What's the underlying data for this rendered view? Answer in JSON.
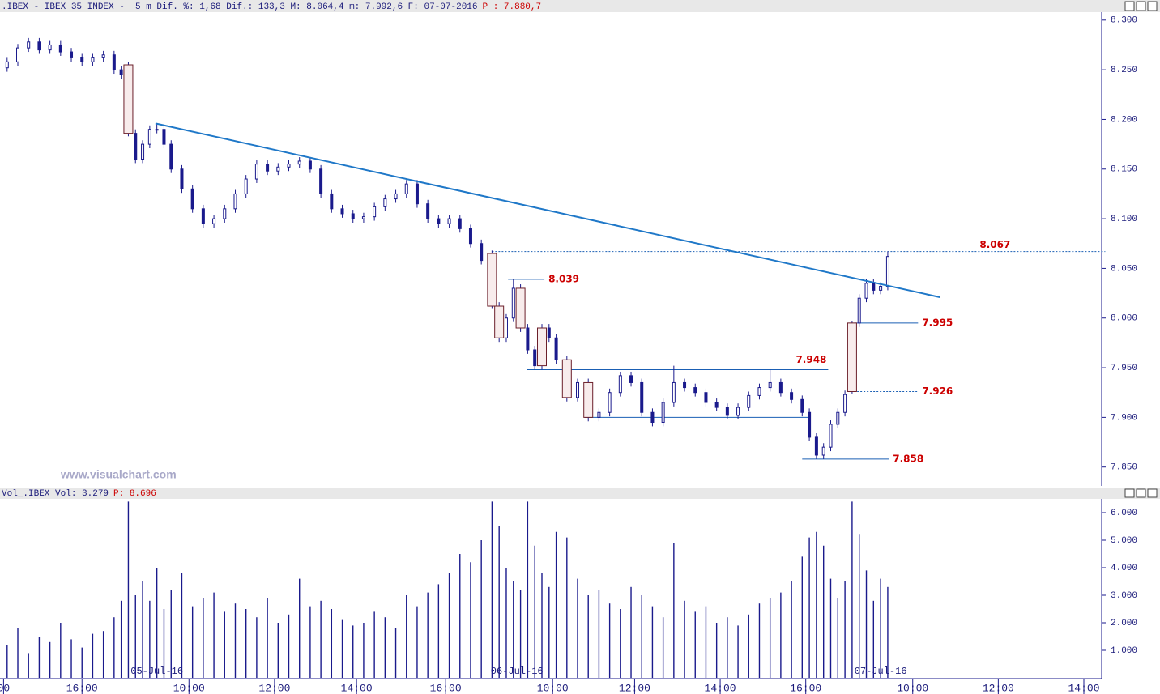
{
  "chart_data": {
    "type": "candlestick",
    "header_text": ".IBEX - IBEX 35 INDEX -  5 m Dif. %: 1,68 Dif.: 133,3 M: 8.064,4 m: 7.992,6 F: 07-07-2016",
    "header_price": "P : 7.880,7",
    "watermark": "www.visualchart.com",
    "volume_header_text": "Vol_.IBEX Vol: 3.279",
    "volume_header_price": "P: 8.696",
    "xlim": [
      0,
      309
    ],
    "xticks": [
      {
        "value": 1,
        "label": "00"
      },
      {
        "value": 23,
        "label": "16:00"
      },
      {
        "value": 53,
        "label": "10:00"
      },
      {
        "value": 77,
        "label": "12:00"
      },
      {
        "value": 100,
        "label": "14:00"
      },
      {
        "value": 125,
        "label": "16:00"
      },
      {
        "value": 155,
        "label": "10:00"
      },
      {
        "value": 178,
        "label": "12:00"
      },
      {
        "value": 202,
        "label": "14:00"
      },
      {
        "value": 226,
        "label": "16:00"
      },
      {
        "value": 256,
        "label": "10:00"
      },
      {
        "value": 280,
        "label": "12:00"
      },
      {
        "value": 304,
        "label": "14:00"
      }
    ],
    "date_labels": [
      {
        "value": 44,
        "label": "05-Jul-16"
      },
      {
        "value": 145,
        "label": "06-Jul-16"
      },
      {
        "value": 247,
        "label": "07-Jul-16"
      }
    ],
    "ylim": [
      7.831,
      8.308
    ],
    "yticks": [
      {
        "value": 7.85,
        "label": "7.850"
      },
      {
        "value": 7.9,
        "label": "7.900"
      },
      {
        "value": 7.95,
        "label": "7.950"
      },
      {
        "value": 8.0,
        "label": "8.000"
      },
      {
        "value": 8.05,
        "label": "8.050"
      },
      {
        "value": 8.1,
        "label": "8.100"
      },
      {
        "value": 8.15,
        "label": "8.150"
      },
      {
        "value": 8.2,
        "label": "8.200"
      },
      {
        "value": 8.25,
        "label": "8.250"
      },
      {
        "value": 8.3,
        "label": "8.300"
      }
    ],
    "color": "#1a1a8c",
    "x": [
      2,
      5,
      8,
      11,
      14,
      17,
      20,
      23,
      26,
      29,
      32,
      34,
      36,
      38,
      40,
      42,
      44,
      46,
      48,
      51,
      54,
      57,
      60,
      63,
      66,
      69,
      72,
      75,
      78,
      81,
      84,
      87,
      90,
      93,
      96,
      99,
      102,
      105,
      108,
      111,
      114,
      117,
      120,
      123,
      126,
      129,
      132,
      135,
      138,
      140,
      142,
      144,
      146,
      148,
      150,
      152,
      154,
      156,
      159,
      162,
      165,
      168,
      171,
      174,
      177,
      180,
      183,
      186,
      189,
      192,
      195,
      198,
      201,
      204,
      207,
      210,
      213,
      216,
      219,
      222,
      225,
      227,
      229,
      231,
      233,
      235,
      237,
      239,
      241,
      243,
      245,
      247,
      249
    ],
    "open": [
      8.252,
      8.258,
      8.272,
      8.278,
      8.27,
      8.275,
      8.268,
      8.262,
      8.258,
      8.262,
      8.265,
      8.25,
      8.255,
      8.186,
      8.16,
      8.175,
      8.19,
      8.19,
      8.175,
      8.15,
      8.13,
      8.11,
      8.095,
      8.1,
      8.11,
      8.125,
      8.14,
      8.155,
      8.148,
      8.152,
      8.155,
      8.158,
      8.15,
      8.125,
      8.11,
      8.105,
      8.1,
      8.102,
      8.112,
      8.12,
      8.125,
      8.135,
      8.115,
      8.1,
      8.095,
      8.1,
      8.09,
      8.075,
      8.065,
      8.012,
      7.98,
      8.0,
      8.03,
      7.99,
      7.968,
      7.952,
      7.99,
      7.98,
      7.958,
      7.92,
      7.935,
      7.9,
      7.905,
      7.925,
      7.942,
      7.935,
      7.905,
      7.895,
      7.915,
      7.935,
      7.93,
      7.925,
      7.915,
      7.91,
      7.902,
      7.91,
      7.922,
      7.93,
      7.935,
      7.925,
      7.918,
      7.905,
      7.88,
      7.862,
      7.87,
      7.893,
      7.905,
      7.926,
      7.995,
      8.02,
      8.035,
      8.028,
      8.032
    ],
    "high": [
      8.262,
      8.276,
      8.282,
      8.282,
      8.279,
      8.279,
      8.272,
      8.266,
      8.266,
      8.269,
      8.269,
      8.254,
      8.258,
      8.19,
      8.179,
      8.194,
      8.196,
      8.194,
      8.179,
      8.154,
      8.134,
      8.114,
      8.104,
      8.114,
      8.129,
      8.144,
      8.159,
      8.159,
      8.156,
      8.159,
      8.162,
      8.162,
      8.154,
      8.129,
      8.114,
      8.109,
      8.106,
      8.116,
      8.124,
      8.129,
      8.139,
      8.139,
      8.119,
      8.104,
      8.104,
      8.104,
      8.094,
      8.079,
      8.068,
      8.016,
      8.004,
      8.039,
      8.034,
      7.994,
      7.972,
      7.994,
      7.994,
      7.984,
      7.962,
      7.939,
      7.939,
      7.909,
      7.929,
      7.946,
      7.946,
      7.939,
      7.909,
      7.919,
      7.952,
      7.939,
      7.934,
      7.929,
      7.919,
      7.914,
      7.914,
      7.926,
      7.934,
      7.948,
      7.939,
      7.929,
      7.922,
      7.909,
      7.884,
      7.874,
      7.897,
      7.909,
      7.927,
      7.997,
      8.024,
      8.039,
      8.039,
      8.036,
      8.067
    ],
    "low": [
      8.248,
      8.254,
      8.268,
      8.266,
      8.266,
      8.264,
      8.258,
      8.254,
      8.254,
      8.258,
      8.246,
      8.241,
      8.183,
      8.156,
      8.156,
      8.171,
      8.186,
      8.171,
      8.146,
      8.126,
      8.106,
      8.091,
      8.091,
      8.096,
      8.106,
      8.121,
      8.136,
      8.144,
      8.144,
      8.148,
      8.151,
      8.146,
      8.121,
      8.106,
      8.101,
      8.096,
      8.096,
      8.098,
      8.108,
      8.116,
      8.121,
      8.111,
      8.096,
      8.091,
      8.091,
      8.086,
      8.071,
      8.054,
      8.01,
      7.976,
      7.976,
      7.996,
      7.986,
      7.964,
      7.948,
      7.948,
      7.976,
      7.954,
      7.916,
      7.916,
      7.896,
      7.896,
      7.901,
      7.921,
      7.931,
      7.901,
      7.891,
      7.891,
      7.911,
      7.926,
      7.921,
      7.911,
      7.906,
      7.898,
      7.898,
      7.906,
      7.918,
      7.926,
      7.921,
      7.914,
      7.901,
      7.876,
      7.858,
      7.858,
      7.866,
      7.889,
      7.901,
      7.924,
      7.991,
      8.016,
      8.024,
      8.024,
      8.028
    ],
    "close": [
      8.258,
      8.272,
      8.278,
      8.27,
      8.275,
      8.268,
      8.262,
      8.258,
      8.262,
      8.265,
      8.25,
      8.245,
      8.186,
      8.16,
      8.175,
      8.19,
      8.19,
      8.175,
      8.15,
      8.13,
      8.11,
      8.095,
      8.1,
      8.11,
      8.125,
      8.14,
      8.155,
      8.148,
      8.152,
      8.155,
      8.158,
      8.15,
      8.125,
      8.11,
      8.105,
      8.1,
      8.102,
      8.112,
      8.12,
      8.125,
      8.135,
      8.115,
      8.1,
      8.095,
      8.1,
      8.09,
      8.075,
      8.058,
      8.012,
      7.98,
      8.0,
      8.03,
      7.99,
      7.968,
      7.952,
      7.99,
      7.98,
      7.958,
      7.92,
      7.935,
      7.9,
      7.905,
      7.925,
      7.942,
      7.935,
      7.905,
      7.895,
      7.915,
      7.935,
      7.93,
      7.925,
      7.915,
      7.91,
      7.902,
      7.91,
      7.922,
      7.93,
      7.935,
      7.925,
      7.918,
      7.905,
      7.88,
      7.862,
      7.87,
      7.893,
      7.905,
      7.923,
      7.995,
      8.02,
      8.035,
      8.028,
      8.032,
      8.062
    ],
    "volume": [
      1200,
      1800,
      900,
      1500,
      1300,
      2000,
      1400,
      1100,
      1600,
      1700,
      2200,
      2800,
      6400,
      3000,
      3500,
      2800,
      4000,
      2500,
      3200,
      3800,
      2600,
      2900,
      3100,
      2400,
      2700,
      2500,
      2200,
      2900,
      2000,
      2300,
      3600,
      2600,
      2800,
      2500,
      2100,
      1900,
      2000,
      2400,
      2200,
      1800,
      3000,
      2600,
      3100,
      3400,
      3800,
      4500,
      4200,
      5000,
      6400,
      5500,
      4000,
      3500,
      3200,
      6400,
      4800,
      3800,
      3300,
      5300,
      5100,
      3600,
      3000,
      3200,
      2700,
      2500,
      3300,
      3000,
      2600,
      2200,
      4900,
      2800,
      2400,
      2600,
      2000,
      2200,
      1900,
      2300,
      2700,
      2900,
      3100,
      3500,
      4400,
      5100,
      5300,
      4800,
      3600,
      2900,
      3500,
      6400,
      5200,
      3900,
      2800,
      3600,
      3300
    ],
    "volume_ylim": [
      0,
      6471
    ],
    "volume_yticks": [
      {
        "value": 1000,
        "label": "1.000"
      },
      {
        "value": 2000,
        "label": "2.000"
      },
      {
        "value": 3000,
        "label": "3.000"
      },
      {
        "value": 4000,
        "label": "4.000"
      },
      {
        "value": 5000,
        "label": "5.000"
      },
      {
        "value": 6000,
        "label": "6.000"
      }
    ],
    "trendline": {
      "x": [
        43.6,
        263.6
      ],
      "y": [
        8.196,
        8.021
      ],
      "color": "#1f78c8"
    },
    "levels": [
      {
        "value": 8.067,
        "label": "8.067",
        "from": 138,
        "to": 310,
        "style": "dotted",
        "label_pos": "inside"
      },
      {
        "value": 8.039,
        "label": "8.039",
        "from": 142.5,
        "to": 152.7,
        "style": "solid",
        "label_pos": "right"
      },
      {
        "value": 7.995,
        "label": "7.995",
        "from": 240,
        "to": 257.5,
        "style": "solid",
        "label_pos": "right"
      },
      {
        "value": 7.948,
        "label": "7.948",
        "from": 147.7,
        "to": 232.3,
        "style": "solid",
        "label_pos": "above"
      },
      {
        "value": 7.926,
        "label": "7.926",
        "from": 238.6,
        "to": 257.5,
        "style": "dotted",
        "label_pos": "right"
      },
      {
        "value": 7.9,
        "from": 164,
        "to": 227,
        "style": "solid"
      },
      {
        "value": 7.858,
        "label": "7.858",
        "from": 225,
        "to": 249.3,
        "style": "solid",
        "label_pos": "right"
      }
    ],
    "level_color": "#1a5fb4"
  }
}
